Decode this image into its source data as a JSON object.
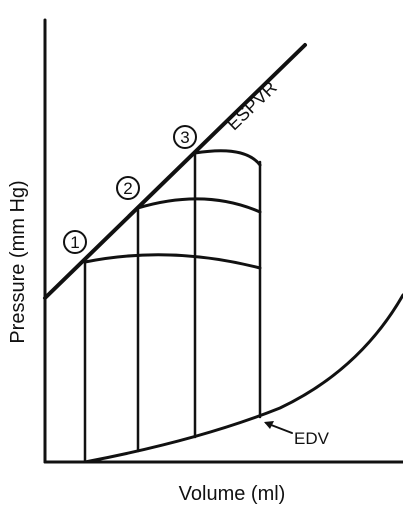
{
  "axes": {
    "y_label": "Pressure (mm Hg)",
    "x_label": "Volume (ml)"
  },
  "curves": {
    "espvr": "ESPVR",
    "edv": "EDV"
  },
  "loops": [
    {
      "label": "1"
    },
    {
      "label": "2"
    },
    {
      "label": "3"
    }
  ]
}
